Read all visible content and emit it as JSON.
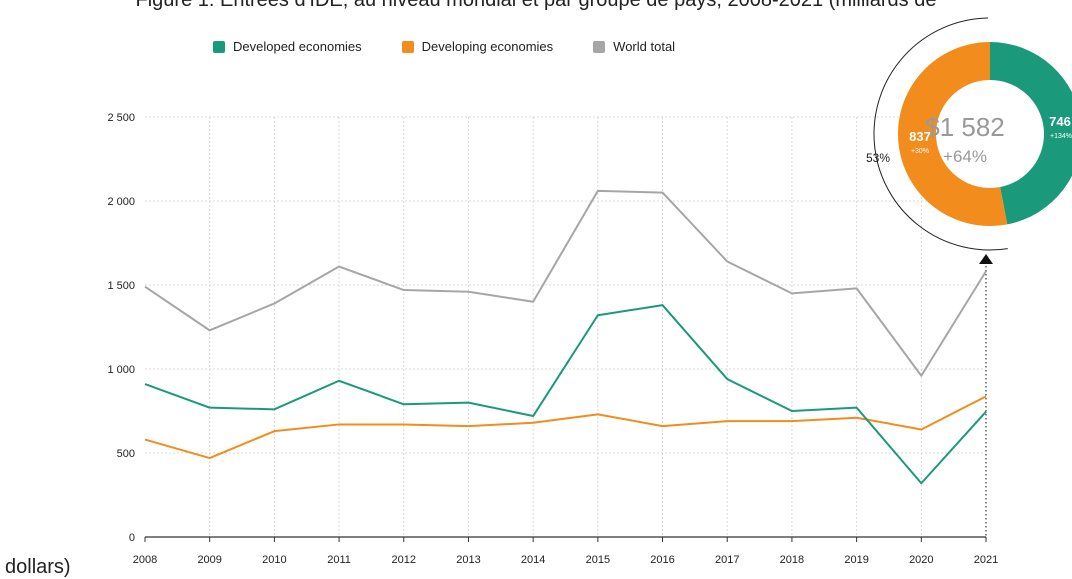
{
  "title_text": "Figure 1. Entrées d'IDE, au niveau mondial et par groupe de pays, 2008-2021 (milliards de",
  "title_tail": "dollars)",
  "legend": [
    {
      "label": "Developed economies",
      "color": "#1a9a7a"
    },
    {
      "label": "Developing economies",
      "color": "#f28c1c"
    },
    {
      "label": "World total",
      "color": "#a6a6a6"
    }
  ],
  "chart_data": {
    "type": "line",
    "x": [
      "2008",
      "2009",
      "2010",
      "2011",
      "2012",
      "2013",
      "2014",
      "2015",
      "2016",
      "2017",
      "2018",
      "2019",
      "2020",
      "2021"
    ],
    "yticks": [
      "0",
      "500",
      "1 000",
      "1 500",
      "2 000",
      "2 500"
    ],
    "ylim": [
      0,
      2500
    ],
    "series": [
      {
        "name": "Developed economies",
        "color": "#1a9a7a",
        "values": [
          910,
          770,
          760,
          930,
          790,
          800,
          720,
          1320,
          1380,
          940,
          750,
          770,
          320,
          746
        ]
      },
      {
        "name": "Developing economies",
        "color": "#f28c1c",
        "values": [
          580,
          470,
          630,
          670,
          670,
          660,
          680,
          730,
          660,
          690,
          690,
          710,
          640,
          837
        ]
      },
      {
        "name": "World total",
        "color": "#a6a6a6",
        "values": [
          1490,
          1230,
          1390,
          1610,
          1470,
          1460,
          1400,
          2060,
          2050,
          1640,
          1450,
          1480,
          960,
          1582
        ]
      }
    ],
    "donut": {
      "total": "$1 582",
      "total_change": "+64%",
      "developed_value": "746",
      "developed_change": "+134%",
      "developing_value": "837",
      "developing_change": "+30%",
      "developing_share": "53%",
      "developed_fraction": 0.47,
      "developing_fraction": 0.53
    }
  }
}
